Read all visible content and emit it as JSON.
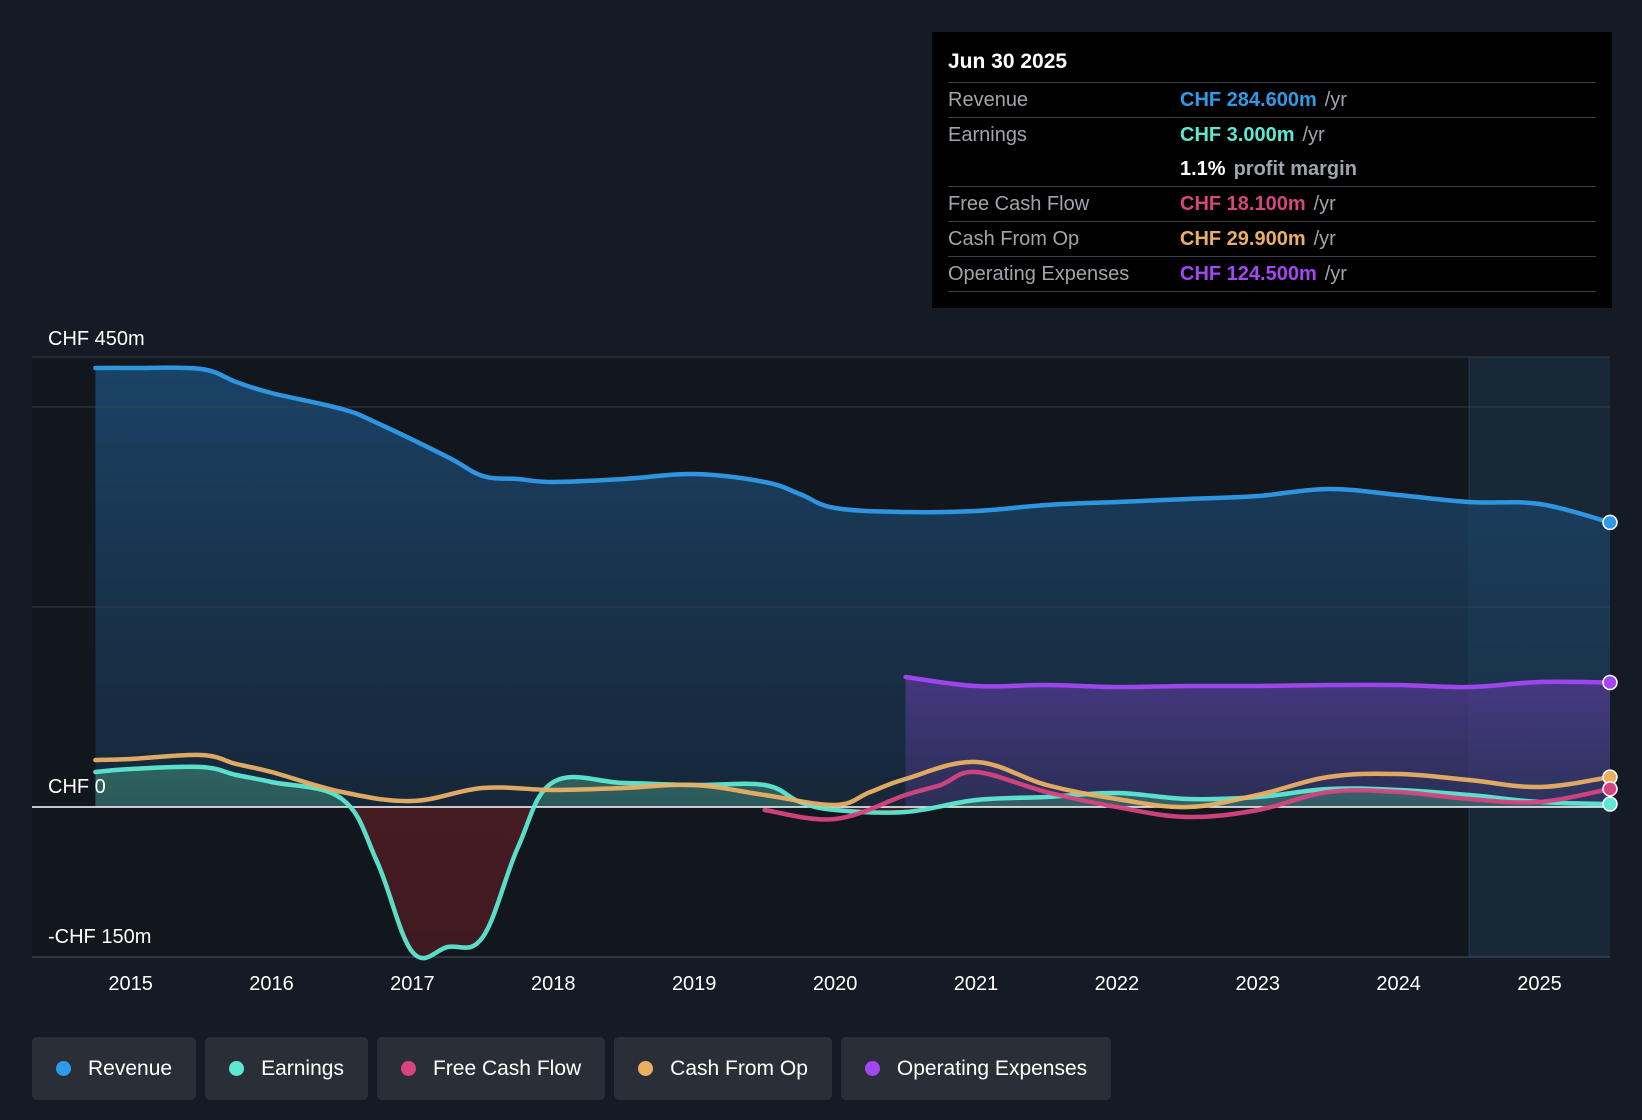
{
  "tooltip": {
    "date": "Jun 30 2025",
    "revenue": {
      "label": "Revenue",
      "value": "CHF 284.600m",
      "unit": "/yr"
    },
    "earnings": {
      "label": "Earnings",
      "value": "CHF 3.000m",
      "unit": "/yr"
    },
    "margin": {
      "value": "1.1%",
      "label": "profit margin"
    },
    "fcf": {
      "label": "Free Cash Flow",
      "value": "CHF 18.100m",
      "unit": "/yr"
    },
    "cfo": {
      "label": "Cash From Op",
      "value": "CHF 29.900m",
      "unit": "/yr"
    },
    "opex": {
      "label": "Operating Expenses",
      "value": "CHF 124.500m",
      "unit": "/yr"
    }
  },
  "legend": [
    {
      "label": "Revenue",
      "color": "#2f9be8"
    },
    {
      "label": "Earnings",
      "color": "#5ee8d2"
    },
    {
      "label": "Free Cash Flow",
      "color": "#d6457f"
    },
    {
      "label": "Cash From Op",
      "color": "#e9b064"
    },
    {
      "label": "Operating Expenses",
      "color": "#a347f2"
    }
  ],
  "chart_data": {
    "type": "area",
    "title": "",
    "ylim": [
      -150,
      450
    ],
    "y_axis_labels": [
      "CHF 450m",
      "CHF 0",
      "-CHF 150m"
    ],
    "xlim": [
      2014.3,
      2025.5
    ],
    "x_ticks": [
      2015,
      2016,
      2017,
      2018,
      2019,
      2020,
      2021,
      2022,
      2023,
      2024,
      2025
    ],
    "forecast_shading_start": 2024.5,
    "colors": {
      "revenue": "#2f9be8",
      "earnings": "#5ee8d2",
      "fcf": "#d6457f",
      "cfo": "#e9b064",
      "opex": "#a347f2"
    },
    "series": [
      {
        "name": "Revenue",
        "key": "revenue",
        "x": [
          2014.75,
          2015.0,
          2015.5,
          2015.75,
          2016.0,
          2016.5,
          2016.75,
          2017.25,
          2017.5,
          2017.75,
          2018.0,
          2018.5,
          2019.0,
          2019.5,
          2019.75,
          2020.0,
          2020.5,
          2021.0,
          2021.5,
          2022.0,
          2022.5,
          2023.0,
          2023.5,
          2024.0,
          2024.5,
          2025.0,
          2025.5
        ],
        "values": [
          439,
          439,
          438,
          425,
          414,
          398,
          384,
          350,
          331,
          328,
          325,
          328,
          333,
          325,
          313,
          299,
          295,
          296,
          302,
          305,
          308,
          311,
          318,
          312,
          305,
          303,
          284.6
        ]
      },
      {
        "name": "Earnings",
        "key": "earnings",
        "x": [
          2014.75,
          2015.0,
          2015.5,
          2015.75,
          2016.0,
          2016.5,
          2016.75,
          2017.0,
          2017.25,
          2017.5,
          2017.75,
          2018.0,
          2018.5,
          2019.0,
          2019.5,
          2019.75,
          2020.0,
          2020.5,
          2021.0,
          2021.5,
          2022.0,
          2022.5,
          2023.0,
          2023.5,
          2024.0,
          2024.5,
          2025.0,
          2025.5
        ],
        "values": [
          35,
          38,
          40,
          32,
          25,
          8,
          -55,
          -145,
          -140,
          -130,
          -40,
          25,
          24,
          22,
          22,
          5,
          -3,
          -5,
          7,
          10,
          14,
          8,
          10,
          18,
          17,
          12,
          5,
          3
        ]
      },
      {
        "name": "Free Cash Flow",
        "key": "fcf",
        "x": [
          2019.5,
          2020.0,
          2020.5,
          2020.75,
          2021.0,
          2021.5,
          2022.0,
          2022.5,
          2023.0,
          2023.5,
          2024.0,
          2024.5,
          2025.0,
          2025.5
        ],
        "values": [
          -3,
          -12,
          12,
          22,
          35,
          15,
          0,
          -10,
          -3,
          15,
          15,
          8,
          5,
          18.1
        ]
      },
      {
        "name": "Cash From Op",
        "key": "cfo",
        "x": [
          2014.75,
          2015.0,
          2015.5,
          2015.75,
          2016.0,
          2016.5,
          2017.0,
          2017.5,
          2018.0,
          2018.5,
          2019.0,
          2019.5,
          2020.0,
          2020.25,
          2020.5,
          2021.0,
          2021.5,
          2022.0,
          2022.5,
          2023.0,
          2023.5,
          2024.0,
          2024.5,
          2025.0,
          2025.5
        ],
        "values": [
          47,
          48,
          52,
          43,
          35,
          15,
          6,
          19,
          17,
          19,
          22,
          12,
          2,
          15,
          28,
          45,
          22,
          8,
          0,
          12,
          30,
          33,
          27,
          20,
          29.9
        ]
      },
      {
        "name": "Operating Expenses",
        "key": "opex",
        "x": [
          2020.5,
          2021.0,
          2021.5,
          2022.0,
          2022.5,
          2023.0,
          2023.5,
          2024.0,
          2024.5,
          2025.0,
          2025.5
        ],
        "values": [
          130,
          121,
          122,
          120,
          121,
          121,
          122,
          122,
          120,
          125,
          124.5
        ]
      }
    ]
  }
}
